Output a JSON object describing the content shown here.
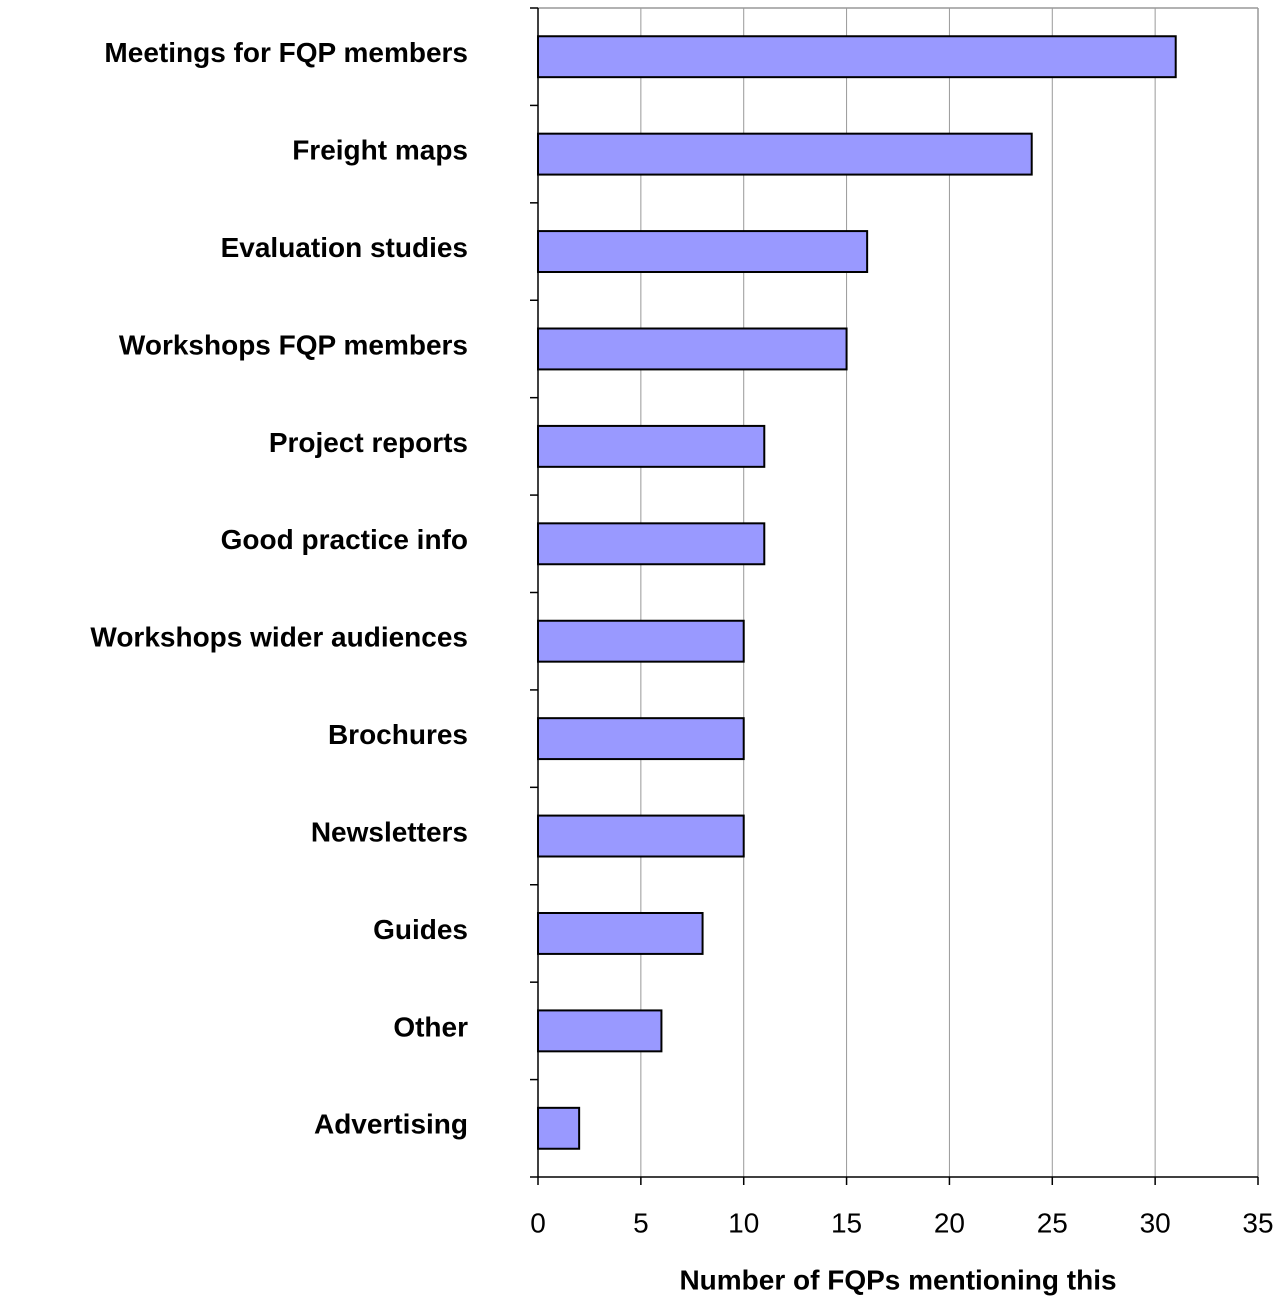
{
  "chart_data": {
    "type": "bar",
    "orientation": "horizontal",
    "categories": [
      "Meetings for FQP members",
      "Freight maps",
      "Evaluation studies",
      "Workshops FQP members",
      "Project reports",
      "Good practice info",
      "Workshops wider audiences",
      "Brochures",
      "Newsletters",
      "Guides",
      "Other",
      "Advertising"
    ],
    "values": [
      31,
      24,
      16,
      15,
      11,
      11,
      10,
      10,
      10,
      8,
      6,
      2
    ],
    "color": "#9999ff",
    "xlabel": "Number of FQPs mentioning this",
    "xlim": [
      0,
      35
    ],
    "xticks": [
      0,
      5,
      10,
      15,
      20,
      25,
      30,
      35
    ],
    "grid": true
  }
}
